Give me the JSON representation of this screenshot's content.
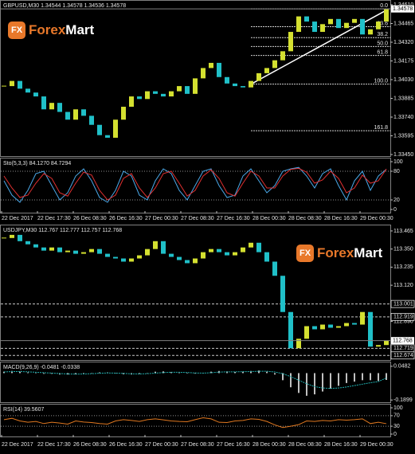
{
  "logo": {
    "mark": "FX",
    "brand": [
      "Forex",
      "Mart"
    ]
  },
  "chart_data": [
    {
      "type": "candlestick",
      "title": "GBPUSD,M30  1.34544 1.34578 1.34536 1.34578",
      "values": [
        1.3398,
        1.3402,
        1.3396,
        1.3393,
        1.339,
        1.338,
        1.3385,
        1.3378,
        1.3372,
        1.338,
        1.3375,
        1.3368,
        1.336,
        1.3358,
        1.3372,
        1.3382,
        1.339,
        1.3388,
        1.3394,
        1.3392,
        1.339,
        1.3394,
        1.3398,
        1.3392,
        1.3404,
        1.3412,
        1.3416,
        1.3405,
        1.34,
        1.3398,
        1.3397,
        1.3402,
        1.3408,
        1.3412,
        1.3418,
        1.3425,
        1.344,
        1.3452,
        1.3448,
        1.344,
        1.3446,
        1.345,
        1.3443,
        1.3447,
        1.345,
        1.3438,
        1.3442,
        1.3448,
        1.34578
      ],
      "up_color": "#d4e030",
      "down_color": "#20c0c8",
      "ylim": [
        1.3345,
        1.3461
      ],
      "yticks": [
        {
          "value": 1.3461,
          "label": "1.34610"
        },
        {
          "value": 1.34465,
          "label": "1.34465"
        },
        {
          "value": 1.3432,
          "label": "1.34320"
        },
        {
          "value": 1.34175,
          "label": "1.34175"
        },
        {
          "value": 1.3403,
          "label": "1.34030"
        },
        {
          "value": 1.33885,
          "label": "1.33885"
        },
        {
          "value": 1.3374,
          "label": "1.33740"
        },
        {
          "value": 1.33595,
          "label": "1.33595"
        },
        {
          "value": 1.3345,
          "label": "1.33450"
        }
      ],
      "last": 1.34578,
      "fib_high": 1.34578,
      "fib_low": 1.33995,
      "fib_levels": [
        {
          "value": 0,
          "label": "0.0"
        },
        {
          "value": 23.6,
          "label": "23.6"
        },
        {
          "value": 38.2,
          "label": "38.2"
        },
        {
          "value": 50,
          "label": "50.0"
        },
        {
          "value": 61.8,
          "label": "61.8"
        },
        {
          "value": 100,
          "label": "100.0"
        },
        {
          "value": 161.8,
          "label": "161.8"
        }
      ]
    },
    {
      "type": "line",
      "title": "Sto(5,3,3) 84.1270 84.7294",
      "series": [
        {
          "color": "#4aa8e8",
          "values": [
            60,
            30,
            15,
            40,
            75,
            80,
            50,
            20,
            35,
            70,
            85,
            60,
            25,
            15,
            40,
            80,
            70,
            30,
            20,
            60,
            85,
            75,
            40,
            20,
            50,
            80,
            85,
            50,
            25,
            30,
            70,
            85,
            60,
            35,
            50,
            80,
            85,
            88,
            70,
            45,
            75,
            85,
            50,
            20,
            60,
            80,
            40,
            70,
            84.13
          ]
        },
        {
          "color": "#e03030",
          "values": [
            70,
            45,
            25,
            30,
            55,
            75,
            65,
            35,
            28,
            55,
            78,
            72,
            40,
            20,
            30,
            65,
            75,
            45,
            25,
            45,
            75,
            80,
            55,
            28,
            40,
            70,
            83,
            65,
            35,
            28,
            55,
            80,
            70,
            45,
            45,
            70,
            84,
            86,
            78,
            55,
            62,
            80,
            65,
            35,
            45,
            72,
            55,
            60,
            84.73
          ]
        }
      ],
      "ylim": [
        0,
        100
      ],
      "yticks": [
        100,
        80,
        20,
        0
      ],
      "levels": [
        80,
        20
      ],
      "x_labels": [
        "22 Dec 2017",
        "22 Dec 17:30",
        "26 Dec 08:30",
        "26 Dec 16:30",
        "27 Dec 00:30",
        "27 Dec 08:30",
        "27 Dec 16:30",
        "28 Dec 00:30",
        "28 Dec 08:30",
        "28 Dec 16:30",
        "29 Dec 00:30"
      ]
    },
    {
      "type": "candlestick",
      "title": "USDJPY,M30  112.767 112.777 112.757 112.768",
      "values": [
        113.42,
        113.44,
        113.4,
        113.38,
        113.36,
        113.34,
        113.36,
        113.33,
        113.34,
        113.32,
        113.33,
        113.35,
        113.32,
        113.3,
        113.29,
        113.27,
        113.29,
        113.31,
        113.35,
        113.4,
        113.32,
        113.3,
        113.28,
        113.26,
        113.29,
        113.33,
        113.35,
        113.33,
        113.31,
        113.33,
        113.36,
        113.39,
        113.33,
        113.27,
        113.18,
        112.95,
        112.72,
        112.78,
        112.86,
        112.84,
        112.87,
        112.85,
        112.86,
        112.88,
        112.87,
        112.95,
        112.73,
        112.74,
        112.768
      ],
      "up_color": "#d4e030",
      "down_color": "#20c0c8",
      "ylim": [
        112.65,
        113.49
      ],
      "yticks": [
        {
          "value": 113.465,
          "label": "113.465"
        },
        {
          "value": 113.35,
          "label": "113.350"
        },
        {
          "value": 113.235,
          "label": "113.235"
        },
        {
          "value": 113.12,
          "label": "113.120"
        },
        {
          "value": 112.89,
          "label": "112.890"
        }
      ],
      "hlines": [
        113.001,
        112.919,
        112.719,
        112.674
      ],
      "last": 112.768
    },
    {
      "type": "macd",
      "title": "MACD(9,26,9) -0.0481 -0.0338",
      "values": [
        0.01,
        0.015,
        0.01,
        0.005,
        0,
        -0.005,
        -0.005,
        -0.01,
        -0.01,
        -0.008,
        -0.005,
        0,
        0.005,
        0.005,
        -0.002,
        -0.008,
        -0.01,
        -0.006,
        0,
        0.01,
        0.012,
        0.008,
        0.004,
        0,
        -0.004,
        0,
        0.01,
        0.015,
        0.012,
        0.008,
        0.01,
        0.015,
        0.018,
        0.01,
        -0.01,
        -0.05,
        -0.1,
        -0.14,
        -0.16,
        -0.15,
        -0.13,
        -0.11,
        -0.09,
        -0.07,
        -0.06,
        -0.05,
        -0.05,
        -0.055,
        -0.0481
      ],
      "signal": [
        0.008,
        0.011,
        0.011,
        0.009,
        0.006,
        0.003,
        0,
        -0.003,
        -0.006,
        -0.007,
        -0.006,
        -0.004,
        -0.001,
        0.001,
        0,
        -0.002,
        -0.005,
        -0.006,
        -0.004,
        0,
        0.004,
        0.006,
        0.006,
        0.004,
        0.001,
        0,
        0.003,
        0.007,
        0.009,
        0.009,
        0.01,
        0.011,
        0.013,
        0.013,
        0.008,
        -0.004,
        -0.025,
        -0.05,
        -0.075,
        -0.095,
        -0.105,
        -0.108,
        -0.105,
        -0.098,
        -0.088,
        -0.078,
        -0.068,
        -0.06,
        -0.0338
      ],
      "color": "#c0c0c0",
      "signal_color": "#20b0b0",
      "ylim": [
        -0.2,
        0.07
      ],
      "yticks": [
        0.0482,
        -0.1899
      ]
    },
    {
      "type": "line",
      "title": "RSI(14) 39.5607",
      "series": [
        {
          "color": "#e07820",
          "values": [
            55,
            60,
            50,
            45,
            48,
            40,
            45,
            42,
            38,
            50,
            46,
            44,
            40,
            38,
            50,
            55,
            52,
            48,
            55,
            58,
            54,
            50,
            48,
            47,
            55,
            62,
            58,
            45,
            44,
            50,
            52,
            58,
            56,
            48,
            35,
            25,
            30,
            36,
            50,
            48,
            52,
            50,
            55,
            53,
            55,
            58,
            40,
            45,
            39.5607
          ]
        }
      ],
      "ylim": [
        0,
        100
      ],
      "yticks": [
        100,
        70,
        30,
        0
      ],
      "levels": [
        70,
        30
      ],
      "x_labels": [
        "22 Dec 2017",
        "22 Dec 17:30",
        "26 Dec 08:30",
        "26 Dec 16:30",
        "27 Dec 00:30",
        "27 Dec 08:30",
        "27 Dec 16:30",
        "28 Dec 00:30",
        "28 Dec 08:30",
        "28 Dec 16:30",
        "29 Dec 00:30"
      ]
    }
  ]
}
